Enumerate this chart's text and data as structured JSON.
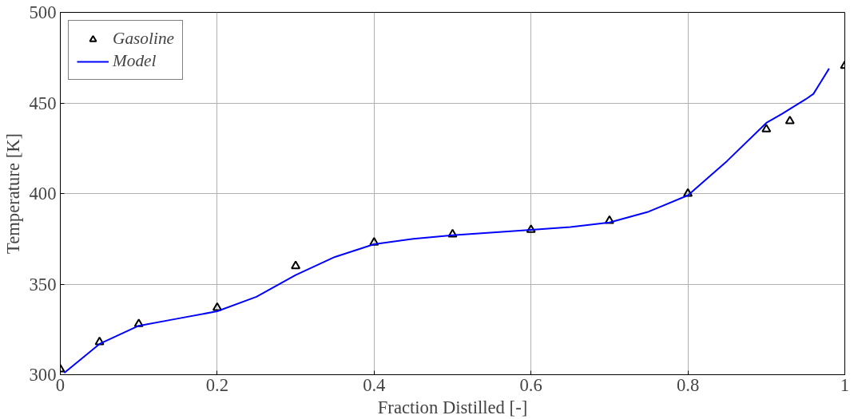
{
  "chart_data": {
    "type": "scatter",
    "xlabel": "Fraction Distilled [-]",
    "ylabel": "Temperature [K]",
    "xlim": [
      0,
      1
    ],
    "ylim": [
      300,
      500
    ],
    "xticks": [
      0,
      0.2,
      0.4,
      0.6,
      0.8,
      1
    ],
    "yticks": [
      300,
      350,
      400,
      450,
      500
    ],
    "grid": true,
    "legend": "top left",
    "series": [
      {
        "name": "Gasoline",
        "marker": "triangle",
        "color": "#000000",
        "x": [
          0,
          0.05,
          0.1,
          0.2,
          0.3,
          0.4,
          0.5,
          0.6,
          0.7,
          0.8,
          0.9,
          0.93,
          1.0
        ],
        "values": [
          303,
          318,
          328,
          337,
          360,
          373,
          377.5,
          380,
          385,
          400,
          435.5,
          440,
          470.5
        ]
      },
      {
        "name": "Model",
        "type": "line",
        "marker": "none",
        "line_style": "solid",
        "color": "#0000ff",
        "x": [
          0.005,
          0.05,
          0.1,
          0.15,
          0.2,
          0.25,
          0.3,
          0.35,
          0.4,
          0.45,
          0.5,
          0.6,
          0.65,
          0.7,
          0.75,
          0.8,
          0.85,
          0.9,
          0.92,
          0.95,
          0.96,
          0.97,
          0.98
        ],
        "values": [
          301,
          317,
          327,
          331,
          335,
          343,
          355,
          365,
          372,
          375,
          377,
          380,
          381.5,
          384,
          390,
          399,
          418,
          439,
          444,
          452,
          455,
          462,
          469
        ]
      }
    ]
  }
}
